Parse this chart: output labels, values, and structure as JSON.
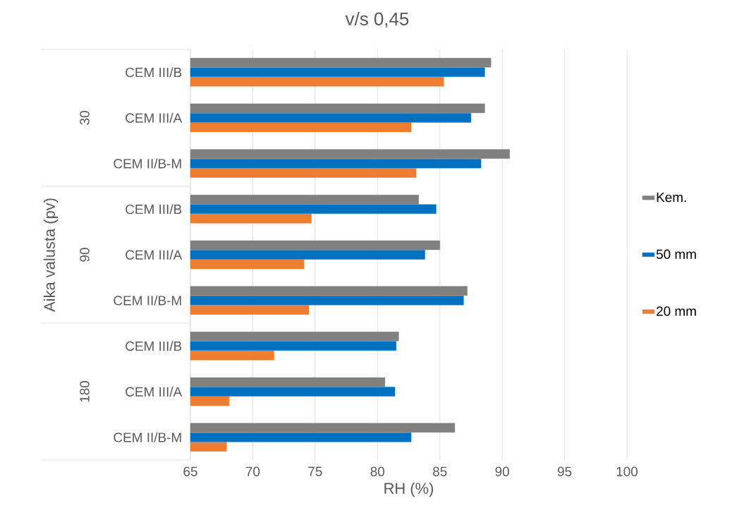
{
  "chart_data": {
    "type": "bar",
    "orientation": "horizontal",
    "title": "v/s 0,45",
    "xlabel": "RH (%)",
    "ylabel": "Aika valusta (pv)",
    "categories": [
      "CEM III/B",
      "CEM III/A",
      "CEM II/B-M",
      "CEM III/B",
      "CEM III/A",
      "CEM II/B-M",
      "CEM III/B",
      "CEM III/A",
      "CEM II/B-M"
    ],
    "annotations": [
      "30",
      "90",
      "180"
    ],
    "series": [
      {
        "name": "Kem.",
        "color": "#808080",
        "values": [
          89.1,
          88.6,
          90.6,
          83.3,
          85.0,
          87.2,
          81.7,
          80.6,
          86.2
        ]
      },
      {
        "name": "50 mm",
        "color": "#0070c0",
        "values": [
          88.6,
          87.5,
          88.3,
          84.7,
          83.8,
          86.9,
          81.5,
          81.4,
          82.7
        ]
      },
      {
        "name": "20 mm",
        "color": "#ed7d31",
        "values": [
          85.3,
          82.7,
          83.1,
          74.7,
          74.1,
          74.5,
          71.7,
          68.1,
          67.9
        ]
      }
    ],
    "xlim": [
      65,
      100
    ],
    "xticks": [
      65,
      70,
      75,
      80,
      85,
      90,
      95,
      100
    ],
    "grid": "x",
    "legend": "right"
  }
}
